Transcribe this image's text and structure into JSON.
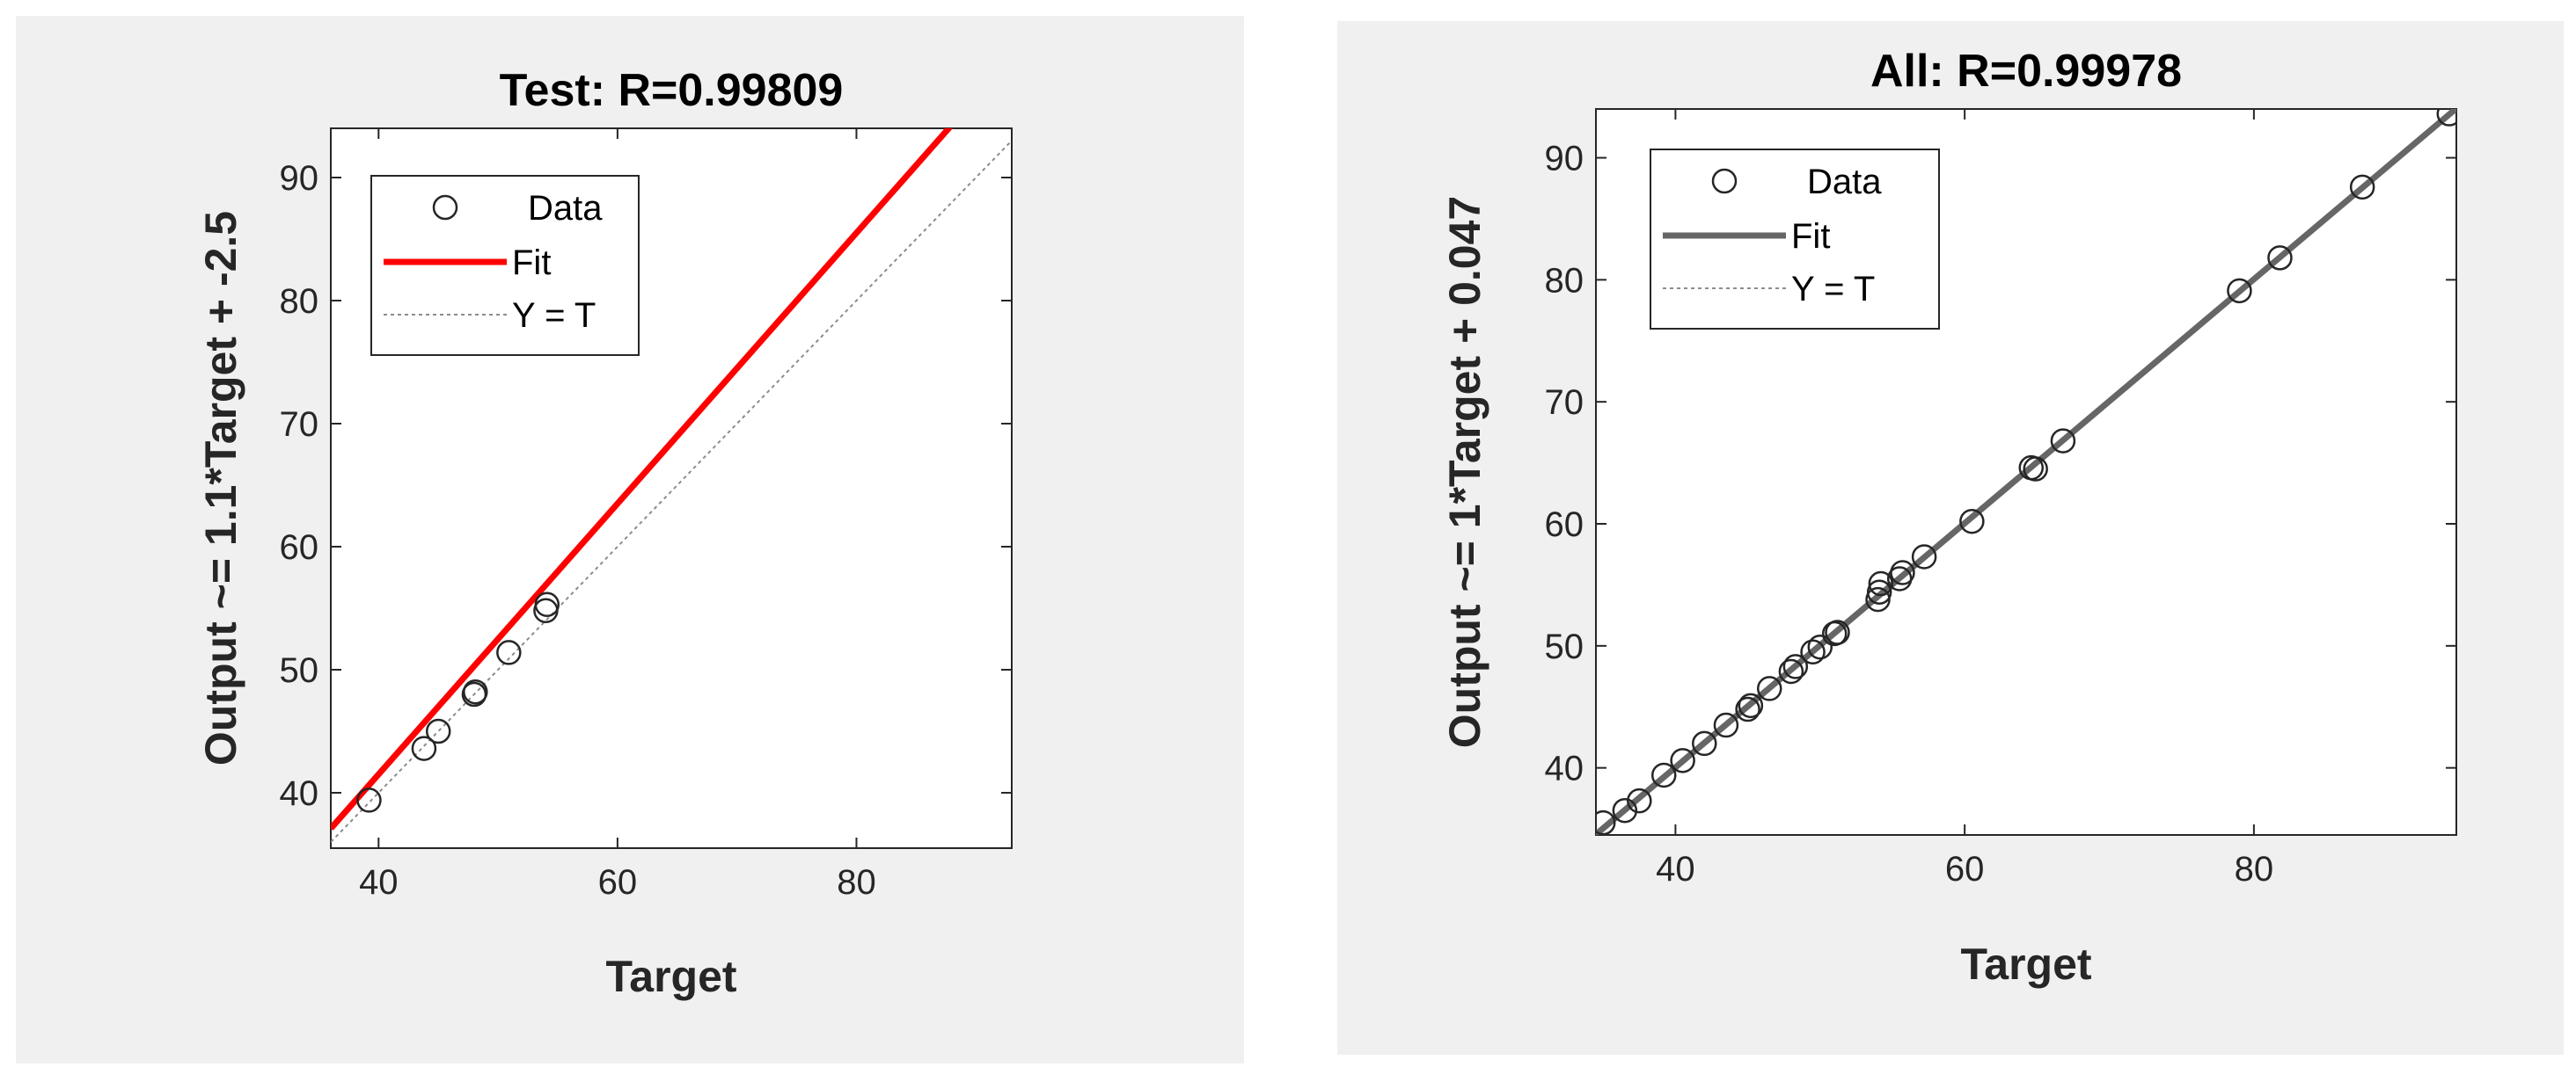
{
  "chart_data": [
    {
      "type": "scatter",
      "title": "Test: R=0.99809",
      "xlabel": "Target",
      "ylabel": "Output ~= 1.1*Target + -2.5",
      "xlim": [
        36,
        93
      ],
      "ylim": [
        35.5,
        94
      ],
      "xticks": [
        40,
        60,
        80
      ],
      "yticks": [
        40,
        50,
        60,
        70,
        80,
        90
      ],
      "fit": {
        "slope": 1.1,
        "intercept": -2.5,
        "color": "#ff0000"
      },
      "legend": {
        "placement": "top-left",
        "entries": [
          "Data",
          "Fit",
          "Y = T"
        ]
      },
      "points": [
        {
          "x": 39.2,
          "y": 39.4
        },
        {
          "x": 43.8,
          "y": 43.6
        },
        {
          "x": 45.0,
          "y": 45.0
        },
        {
          "x": 48.0,
          "y": 48.0
        },
        {
          "x": 48.1,
          "y": 48.2
        },
        {
          "x": 50.9,
          "y": 51.4
        },
        {
          "x": 54.0,
          "y": 54.8
        },
        {
          "x": 54.1,
          "y": 55.3
        }
      ]
    },
    {
      "type": "scatter",
      "title": "All: R=0.99978",
      "xlabel": "Target",
      "ylabel": "Output ~= 1*Target + 0.047",
      "xlim": [
        34.5,
        94
      ],
      "ylim": [
        34.5,
        94
      ],
      "xticks": [
        40,
        60,
        80
      ],
      "yticks": [
        40,
        50,
        60,
        70,
        80,
        90
      ],
      "fit": {
        "slope": 1.0,
        "intercept": 0.047,
        "color": "#666666"
      },
      "legend": {
        "placement": "top-left",
        "entries": [
          "Data",
          "Fit",
          "Y = T"
        ]
      },
      "points": [
        {
          "x": 35.0,
          "y": 35.5
        },
        {
          "x": 36.5,
          "y": 36.5
        },
        {
          "x": 37.5,
          "y": 37.3
        },
        {
          "x": 39.2,
          "y": 39.4
        },
        {
          "x": 40.5,
          "y": 40.6
        },
        {
          "x": 42.0,
          "y": 42.0
        },
        {
          "x": 43.5,
          "y": 43.5
        },
        {
          "x": 45.0,
          "y": 44.8
        },
        {
          "x": 45.2,
          "y": 45.1
        },
        {
          "x": 46.5,
          "y": 46.5
        },
        {
          "x": 48.0,
          "y": 47.9
        },
        {
          "x": 48.3,
          "y": 48.3
        },
        {
          "x": 49.5,
          "y": 49.5
        },
        {
          "x": 50.0,
          "y": 49.9
        },
        {
          "x": 51.0,
          "y": 51.0
        },
        {
          "x": 51.2,
          "y": 51.1
        },
        {
          "x": 54.0,
          "y": 53.8
        },
        {
          "x": 54.1,
          "y": 54.4
        },
        {
          "x": 54.2,
          "y": 55.1
        },
        {
          "x": 55.5,
          "y": 55.5
        },
        {
          "x": 55.7,
          "y": 56.0
        },
        {
          "x": 57.2,
          "y": 57.3
        },
        {
          "x": 60.5,
          "y": 60.2
        },
        {
          "x": 64.6,
          "y": 64.6
        },
        {
          "x": 64.9,
          "y": 64.5
        },
        {
          "x": 66.8,
          "y": 66.8
        },
        {
          "x": 79.0,
          "y": 79.1
        },
        {
          "x": 81.8,
          "y": 81.8
        },
        {
          "x": 87.5,
          "y": 87.6
        },
        {
          "x": 93.5,
          "y": 93.6
        }
      ]
    }
  ]
}
